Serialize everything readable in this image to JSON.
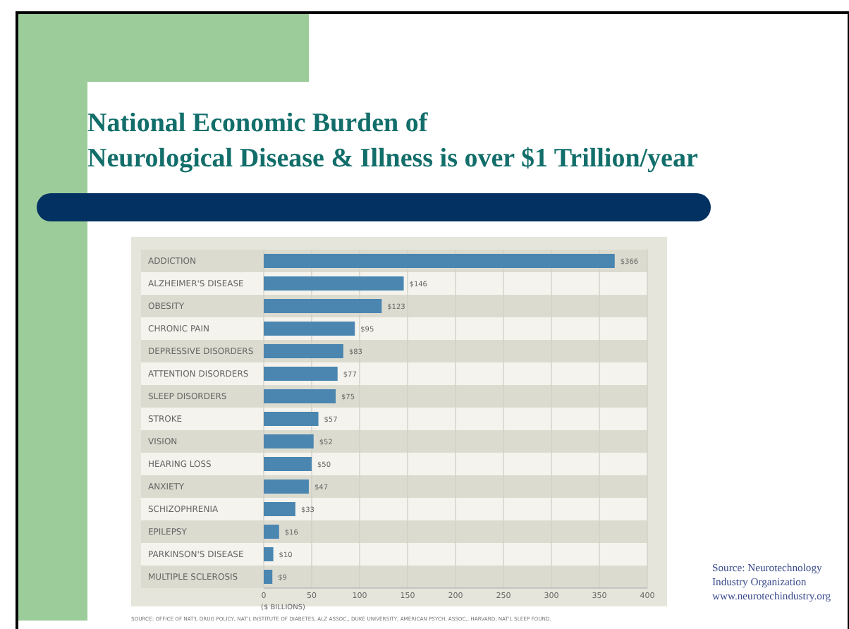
{
  "chart_data": {
    "type": "bar",
    "orientation": "horizontal",
    "title": "National Economic Burden of\nNeurological Disease & Illness is over $1 Trillion/year",
    "categories": [
      "ADDICTION",
      "ALZHEIMER'S DISEASE",
      "OBESITY",
      "CHRONIC PAIN",
      "DEPRESSIVE DISORDERS",
      "ATTENTION DISORDERS",
      "SLEEP DISORDERS",
      "STROKE",
      "VISION",
      "HEARING LOSS",
      "ANXIETY",
      "SCHIZOPHRENIA",
      "EPILEPSY",
      "PARKINSON'S DISEASE",
      "MULTIPLE SCLEROSIS"
    ],
    "values": [
      366,
      146,
      123,
      95,
      83,
      77,
      75,
      57,
      52,
      50,
      47,
      33,
      16,
      10,
      9
    ],
    "value_labels": [
      "$366",
      "$146",
      "$123",
      "$95",
      "$83",
      "$77",
      "$75",
      "$57",
      "$52",
      "$50",
      "$47",
      "$33",
      "$16",
      "$10",
      "$9"
    ],
    "color": "#4a86b0",
    "xlabel": "($ BILLIONS)",
    "xlim": [
      0,
      400
    ],
    "xticks": [
      0,
      50,
      100,
      150,
      200,
      250,
      300,
      350,
      400
    ],
    "grid": "x",
    "annotations": [
      "SOURCE: OFFICE OF NAT'L DRUG POLICY, NAT'L INSTITUTE OF DIABETES, ALZ ASSOC., DUKE UNIVERSITY, AMERICAN PSYCH. ASSOC., HARVARD, NAT'L SLEEP FOUND.",
      "Source: Neurotechnology\nIndustry Organization\nwww.neurotechindustry.org"
    ]
  }
}
